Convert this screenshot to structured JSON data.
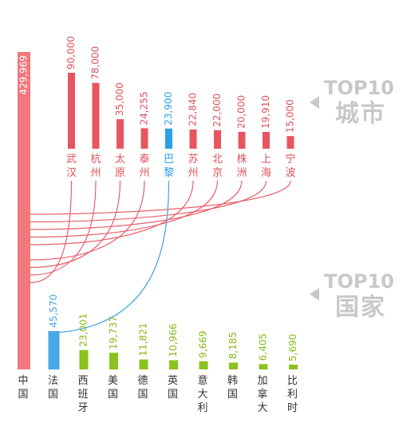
{
  "colors": {
    "china": "#f2787e",
    "city": "#e8555e",
    "city_text": "#e0525a",
    "paris": "#2b9fe8",
    "france": "#4aa8e6",
    "country": "#8cc21d",
    "country_text": "#86bb1a",
    "link_red": "#e8606a",
    "link_blue": "#4aa8e6",
    "badge": "#c8c8c8"
  },
  "badges": [
    {
      "top": "TOP10",
      "bottom": "城市"
    },
    {
      "top": "TOP10",
      "bottom": "国家"
    }
  ],
  "chart_data": [
    {
      "type": "bar",
      "orientation": "vertical",
      "categories": [
        "宁波",
        "上海",
        "株洲",
        "北京",
        "苏州",
        "巴黎",
        "泰州",
        "太原",
        "杭州",
        "武汉"
      ],
      "values": [
        15000,
        19910,
        20000,
        22000,
        22840,
        23900,
        24255,
        35000,
        78000,
        90000
      ],
      "value_labels": [
        "15,000",
        "19,910",
        "20,000",
        "22,000",
        "22,840",
        "23,900",
        "24,255",
        "35,000",
        "78,000",
        "90,000"
      ],
      "highlight": "巴黎",
      "legend": "TOP10 城市"
    },
    {
      "type": "bar",
      "orientation": "vertical",
      "categories": [
        "中国",
        "法国",
        "西班牙",
        "美国",
        "德国",
        "英国",
        "意大利",
        "韩国",
        "加拿大",
        "比利时"
      ],
      "values": [
        429969,
        45570,
        23001,
        19737,
        11821,
        10966,
        9669,
        8185,
        6405,
        5690
      ],
      "value_labels": [
        "429,969",
        "45,570",
        "23,001",
        "19,737",
        "11,821",
        "10,966",
        "9,669",
        "8,185",
        "6,405",
        "5,690"
      ],
      "legend": "TOP10 国家"
    }
  ]
}
